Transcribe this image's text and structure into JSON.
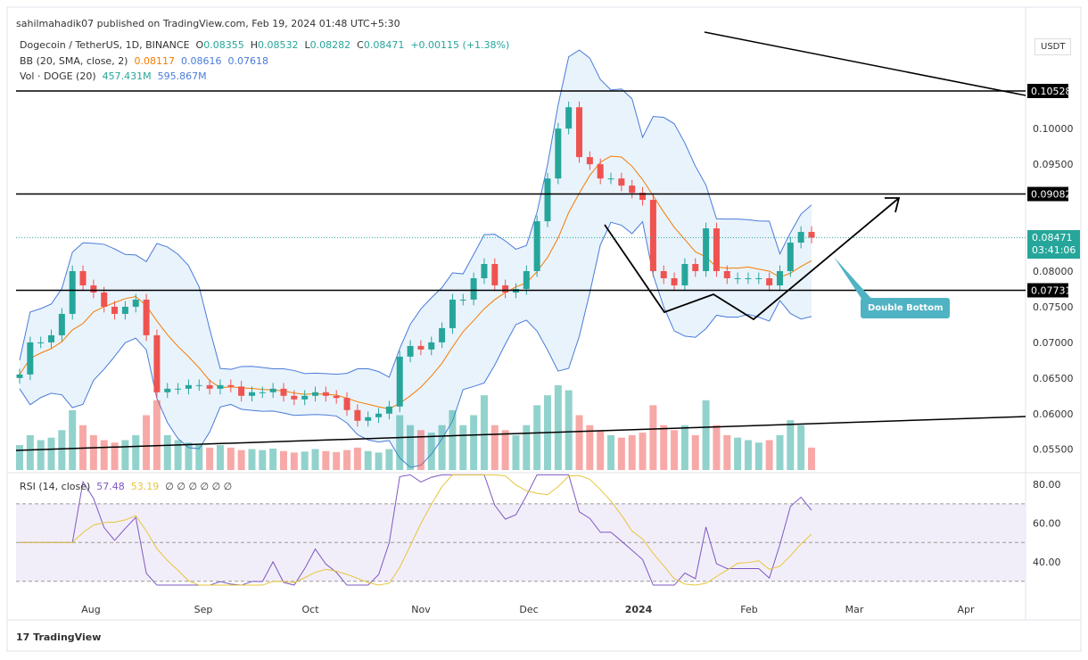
{
  "header": {
    "published": "sahilmahadik07 published on TradingView.com, Feb 19, 2024 01:48 UTC+5:30"
  },
  "legend": {
    "symbol": "Dogecoin / TetherUS, 1D, BINANCE",
    "o_label": "O",
    "o": "0.08355",
    "h_label": "H",
    "h": "0.08532",
    "l_label": "L",
    "l": "0.08282",
    "c_label": "C",
    "c": "0.08471",
    "change": "+0.00115 (+1.38%)",
    "bb_label": "BB (20, SMA, close, 2)",
    "bb_basis": "0.08117",
    "bb_upper": "0.08616",
    "bb_lower": "0.07618",
    "vol_label": "Vol · DOGE (20)",
    "vol": "457.431M",
    "vol_ma": "595.867M",
    "rsi_label": "RSI (14, close)",
    "rsi": "57.48",
    "rsi_ma": "53.19",
    "rsi_extra": "∅ ∅ ∅ ∅ ∅ ∅"
  },
  "currency": "USDT",
  "last_price": {
    "value": "0.08471",
    "countdown": "03:41:06"
  },
  "levels": [
    {
      "label": "0.10528",
      "value": 0.10528
    },
    {
      "label": "0.09082",
      "value": 0.09082
    },
    {
      "label": "0.07731",
      "value": 0.07731
    }
  ],
  "annotation": "Double Bottom",
  "footer": {
    "brand": "TradingView"
  },
  "colors": {
    "up": "#26a69a",
    "down": "#ef5350",
    "bb": "#4a7bd8",
    "basis": "#f57c00",
    "rsi": "#7e57c2",
    "rsi_ma": "#e6c53a",
    "callout": "#4fb3c4"
  },
  "chart_data": {
    "type": "candlestick",
    "price_ticks": [
      "0.10000",
      "0.09500",
      "0.08000",
      "0.07500",
      "0.07000",
      "0.06500",
      "0.06000",
      "0.05500"
    ],
    "price_tick_values": [
      0.1,
      0.095,
      0.08,
      0.075,
      0.07,
      0.065,
      0.06,
      0.055
    ],
    "x_ticks": [
      "Aug",
      "Sep",
      "Oct",
      "Nov",
      "Dec",
      "2024",
      "Feb",
      "Mar",
      "Apr"
    ],
    "rsi_ticks": [
      "80.00",
      "60.00",
      "40.00"
    ],
    "closes_3day": [
      0.0655,
      0.07,
      0.07,
      0.071,
      0.074,
      0.08,
      0.078,
      0.077,
      0.075,
      0.074,
      0.075,
      0.076,
      0.071,
      0.063,
      0.0635,
      0.0635,
      0.064,
      0.064,
      0.0635,
      0.064,
      0.0638,
      0.0625,
      0.063,
      0.063,
      0.0635,
      0.0625,
      0.062,
      0.0625,
      0.063,
      0.0625,
      0.0622,
      0.0605,
      0.059,
      0.0595,
      0.06,
      0.061,
      0.068,
      0.0695,
      0.069,
      0.07,
      0.072,
      0.076,
      0.076,
      0.079,
      0.081,
      0.078,
      0.077,
      0.0775,
      0.08,
      0.087,
      0.093,
      0.1,
      0.103,
      0.096,
      0.095,
      0.093,
      0.093,
      0.092,
      0.091,
      0.09,
      0.08,
      0.079,
      0.078,
      0.081,
      0.08,
      0.086,
      0.08,
      0.079,
      0.079,
      0.079,
      0.079,
      0.078,
      0.08,
      0.084,
      0.0855,
      0.0847
    ],
    "volume_3day_m": [
      500,
      700,
      600,
      650,
      800,
      1200,
      900,
      700,
      600,
      550,
      600,
      700,
      1100,
      1400,
      700,
      600,
      550,
      500,
      450,
      500,
      450,
      400,
      420,
      400,
      430,
      380,
      350,
      370,
      420,
      380,
      360,
      400,
      450,
      380,
      350,
      420,
      1100,
      900,
      800,
      750,
      900,
      1200,
      900,
      1100,
      1500,
      900,
      800,
      700,
      900,
      1300,
      1500,
      1700,
      1600,
      1100,
      900,
      800,
      700,
      650,
      700,
      750,
      1300,
      900,
      800,
      900,
      700,
      1400,
      900,
      700,
      650,
      600,
      550,
      600,
      700,
      1000,
      900,
      450
    ]
  }
}
